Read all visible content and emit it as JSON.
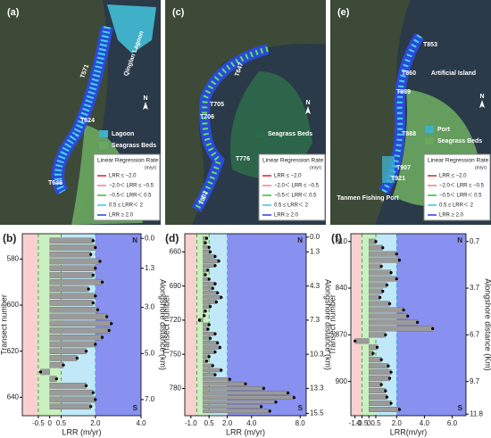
{
  "maps": [
    {
      "panel_label": "(a)",
      "labels": [
        "Qinglan Lagoon",
        "T571",
        "T624",
        "T646",
        "Seagrass Beds"
      ],
      "legend": [
        "Lagoon",
        "Seagrass Beds"
      ]
    },
    {
      "panel_label": "(c)",
      "labels": [
        "T647",
        "T705",
        "T706",
        "T776",
        "T802"
      ],
      "legend": [
        "Seagrass Beds"
      ]
    },
    {
      "panel_label": "(e)",
      "labels": [
        "T853",
        "Artificial Island",
        "T860",
        "T869",
        "T888",
        "T907",
        "T921",
        "Tanmen Fishing Port"
      ],
      "legend": [
        "Port",
        "Seagrass Beds"
      ]
    }
  ],
  "lrr_legend": {
    "title": "Linear Regression Rate",
    "unit": "(m/yr)",
    "items": [
      {
        "label": "LRR ≤ −2.0",
        "color": "#e02020"
      },
      {
        "label": "−2.0＜ LRR ≤ −0.5",
        "color": "#f08080"
      },
      {
        "label": "−0.5＜ LRR＜ 0.5",
        "color": "#30c030"
      },
      {
        "label": "0.5 ≤ LRR＜ 2",
        "color": "#30c8e8"
      },
      {
        "label": "LRR ≥ 2.0",
        "color": "#2040e0"
      }
    ]
  },
  "north": "N",
  "chart_data": [
    {
      "type": "bar",
      "panel_label": "(b)",
      "xlabel": "LRR (m/yr)",
      "ylabel": "Transect number",
      "y2label": "Alongshore distance (km)",
      "end_labels": {
        "top": "N",
        "bottom": "S"
      },
      "y": [
        572,
        575,
        578,
        581,
        584,
        587,
        590,
        593,
        596,
        599,
        602,
        605,
        608,
        611,
        614,
        617,
        620,
        623,
        626,
        629,
        632,
        635,
        638,
        641,
        644
      ],
      "values": [
        1.9,
        2.0,
        1.8,
        2.2,
        2.0,
        1.9,
        2.3,
        1.7,
        2.0,
        1.9,
        2.1,
        2.5,
        2.7,
        2.6,
        2.3,
        2.0,
        1.6,
        1.2,
        0.6,
        -0.4,
        0.3,
        1.6,
        1.9,
        2.0,
        1.8
      ],
      "xlim": [
        -1.2,
        4.0
      ],
      "xticks": [
        -0.5,
        0,
        0.5,
        {
          "value": 2,
          "label": "2.0"
        },
        {
          "value": 4,
          "label": "4.0"
        }
      ],
      "ylim": [
        569,
        648
      ],
      "yticks": [
        580,
        600,
        620,
        640
      ],
      "y2lim": [
        -0.2,
        7.7
      ],
      "y2ticks": [
        {
          "value": 0,
          "label": "0.0"
        },
        1.3,
        {
          "value": 3,
          "label": "3.0"
        },
        {
          "value": 5,
          "label": "5.0"
        },
        {
          "value": 7,
          "label": "7.0"
        }
      ],
      "thresholds": [
        -0.5,
        0.5,
        2.0
      ],
      "zone_colors": [
        "#f8d0d0",
        "#c8f0c0",
        "#c0e8f8",
        "#8890f0"
      ],
      "bar_color": "#9a9a9a"
    },
    {
      "type": "bar",
      "panel_label": "(d)",
      "xlabel": "LRR (m/yr)",
      "ylabel": "Transect number",
      "y2label": "Alongshore distance (km)",
      "end_labels": {
        "top": "N",
        "bottom": "S"
      },
      "y": [
        648,
        652,
        656,
        660,
        664,
        668,
        672,
        676,
        680,
        684,
        688,
        692,
        696,
        700,
        704,
        708,
        712,
        716,
        720,
        724,
        728,
        732,
        736,
        740,
        744,
        748,
        752,
        756,
        760,
        764,
        768,
        772,
        776,
        780,
        784,
        788,
        792,
        796,
        800
      ],
      "values": [
        0.3,
        0.2,
        0.5,
        0.6,
        1.0,
        1.3,
        1.0,
        0.4,
        0.2,
        0.5,
        1.0,
        0.8,
        1.2,
        1.5,
        1.1,
        0.6,
        0.2,
        0.1,
        -0.3,
        0.5,
        0.4,
        1.0,
        0.6,
        1.2,
        1.4,
        1.0,
        0.5,
        0.3,
        0.8,
        1.5,
        1.0,
        2.2,
        3.5,
        5.0,
        7.0,
        7.5,
        6.0,
        4.8,
        5.5
      ],
      "xlim": [
        -1.5,
        8.5
      ],
      "xticks": [
        {
          "value": -1,
          "label": "-1.0"
        },
        0.5,
        {
          "value": 2,
          "label": "2.0"
        },
        {
          "value": 4,
          "label": "4.0"
        },
        {
          "value": 8,
          "label": "8.0"
        }
      ],
      "ylim": [
        644,
        804
      ],
      "yticks": [
        660,
        690,
        720,
        750,
        780
      ],
      "y2lim": [
        -0.3,
        15.7
      ],
      "y2ticks": [
        {
          "value": 0,
          "label": "0.0"
        },
        1.3,
        4.3,
        7.3,
        10.3,
        13.3,
        15.5
      ],
      "thresholds": [
        -0.5,
        0.5,
        2.0
      ],
      "zone_colors": [
        "#f8d0d0",
        "#c8f0c0",
        "#c0e8f8",
        "#8890f0"
      ],
      "bar_color": "#9a9a9a"
    },
    {
      "type": "bar",
      "panel_label": "(f)",
      "xlabel": "LRR(m/yr)",
      "ylabel": "Transect number",
      "y2label": "Alongshore distance (Km)",
      "end_labels": {
        "top": "N",
        "bottom": "S"
      },
      "y": [
        810,
        814,
        818,
        822,
        826,
        830,
        834,
        838,
        842,
        846,
        850,
        854,
        858,
        862,
        866,
        870,
        874,
        878,
        882,
        886,
        890,
        894,
        898,
        902,
        906,
        910,
        914,
        918
      ],
      "values": [
        0.5,
        1.0,
        2.0,
        2.2,
        0.9,
        1.6,
        2.0,
        1.3,
        1.0,
        0.8,
        1.5,
        2.5,
        2.8,
        3.5,
        4.6,
        1.2,
        -1.0,
        0.6,
        0.3,
        0.9,
        1.4,
        1.6,
        1.5,
        0.9,
        1.2,
        1.3,
        1.6,
        2.2
      ],
      "xlim": [
        -1.3,
        7.0
      ],
      "xticks": [
        {
          "value": -1,
          "label": "-1.0"
        },
        -0.5,
        0,
        0.5,
        {
          "value": 2,
          "label": "2.0"
        },
        {
          "value": 4,
          "label": "4.0"
        },
        {
          "value": 6,
          "label": "6.0"
        }
      ],
      "ylim": [
        805,
        922
      ],
      "yticks": [
        810,
        840,
        870,
        900
      ],
      "y2lim": [
        0.2,
        11.9
      ],
      "y2ticks": [
        0.7,
        3.7,
        6.7,
        9.7,
        11.8
      ],
      "thresholds": [
        -0.5,
        0.5,
        2.0
      ],
      "zone_colors": [
        "#f8d0d0",
        "#c8f0c0",
        "#c0e8f8",
        "#8890f0"
      ],
      "bar_color": "#9a9a9a"
    }
  ]
}
